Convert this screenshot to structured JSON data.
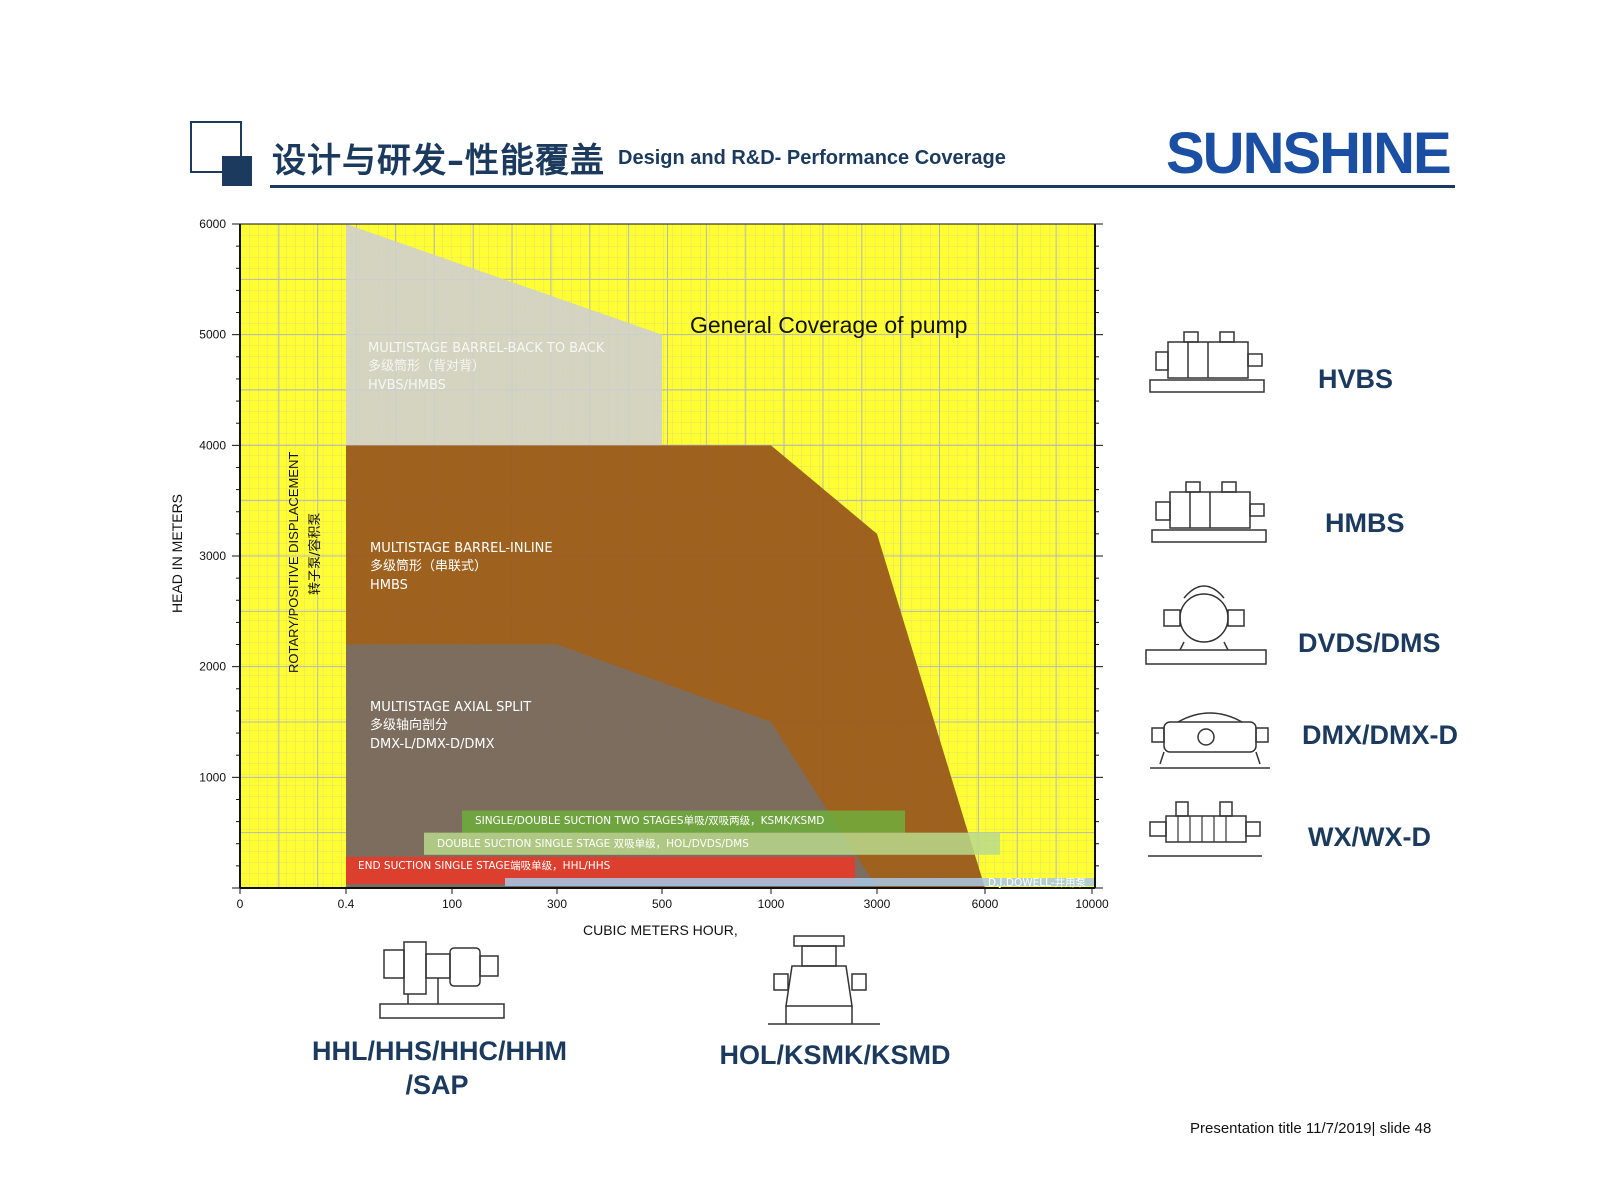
{
  "header": {
    "title_cn": "设计与研发–性能覆盖",
    "title_en": "Design and R&D- Performance Coverage",
    "logo_text": "SUNSHINE",
    "accent": "#1b3a5e",
    "logo_color": "#1a4fa3"
  },
  "footer": {
    "note": "Presentation title 11/7/2019| slide 48"
  },
  "chart_data": {
    "type": "area",
    "title": "General Coverage of pump",
    "xlabel": "CUBIC METERS HOUR,",
    "ylabel": "HEAD IN  METERS",
    "x_ticks": [
      "0",
      "0.4",
      "100",
      "300",
      "500",
      "1000",
      "3000",
      "6000",
      "10000"
    ],
    "y_ticks": [
      1000,
      2000,
      3000,
      4000,
      5000,
      6000
    ],
    "ylim": [
      0,
      6000
    ],
    "grid": true,
    "background_color": "#ffff33",
    "vertical_label_line1": "ROTARY/POSITIVE DISPLACEMENT",
    "vertical_label_line2": "转子泵/容积泵",
    "regions": [
      {
        "name": "MULTISTAGE BARREL-BACK TO BACK",
        "name_cn": "多级筒形（背对背）",
        "models": "HVBS/HMBS",
        "color": "#cfcfcf",
        "x": [
          "0.4",
          "0.4",
          "500",
          "500"
        ],
        "y": [
          4000,
          6000,
          5000,
          4000
        ]
      },
      {
        "name": "MULTISTAGE BARREL-INLINE",
        "name_cn": "多级筒形（串联式）",
        "models": "HMBS",
        "color": "#9a5a1e",
        "x": [
          "0.4",
          "0.4",
          "1000",
          "3000",
          "6000"
        ],
        "y": [
          0,
          4000,
          4000,
          3200,
          0
        ]
      },
      {
        "name": "MULTISTAGE AXIAL SPLIT",
        "name_cn": "多级轴向剖分",
        "models": "DMX-L/DMX-D/DMX",
        "color": "#7a6e63",
        "x": [
          "0.4",
          "0.4",
          "300",
          "1000",
          "3000"
        ],
        "y": [
          0,
          2200,
          2200,
          1500,
          0
        ]
      }
    ],
    "bands": [
      {
        "label": "SINGLE/DOUBLE SUCTION TWO STAGES单吸/双吸两级，KSMK/KSMD",
        "color": "#6fae3c",
        "y_range": [
          500,
          700
        ]
      },
      {
        "label": "DOUBLE SUCTION SINGLE STAGE 双吸单级，HOL/DVDS/DMS",
        "color": "#b8d98c",
        "y_range": [
          300,
          500
        ]
      },
      {
        "label": "END SUCTION SINGLE STAGE端吸单级，HHL/HHS",
        "color": "#e83a2a",
        "y_range": [
          0,
          300
        ]
      },
      {
        "label": "D.J.DOWELL-井用泵",
        "color": "#a8c8e8",
        "y_range": [
          0,
          100
        ]
      }
    ]
  },
  "pumps": {
    "right": [
      {
        "label": "HVBS",
        "icon": "barrel-pump-icon"
      },
      {
        "label": "HMBS",
        "icon": "barrel-pump-icon"
      },
      {
        "label": "DVDS/DMS",
        "icon": "split-case-pump-icon"
      },
      {
        "label": "DMX/DMX-D",
        "icon": "axial-split-pump-icon"
      },
      {
        "label": "WX/WX-D",
        "icon": "multistage-pump-icon"
      }
    ],
    "bottom": [
      {
        "label_line1": "HHL/HHS/HHC/HHM",
        "label_line2": "/SAP",
        "icon": "end-suction-pump-icon"
      },
      {
        "label_line1": "HOL/KSMK/KSMD",
        "label_line2": "",
        "icon": "double-suction-pump-icon"
      }
    ]
  }
}
